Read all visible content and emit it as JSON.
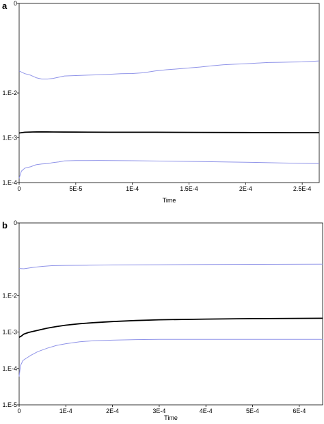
{
  "chart_data": [
    {
      "type": "line",
      "panel_label": "a",
      "xlabel": "Time",
      "ylabel": "",
      "xlim": [
        0,
        0.000265
      ],
      "ylim": [
        0.0001,
        1
      ],
      "y_scale": "log",
      "grid": false,
      "x_ticks": [
        {
          "value": 0,
          "label": "0"
        },
        {
          "value": 5e-05,
          "label": "5E-5"
        },
        {
          "value": 0.0001,
          "label": "1E-4"
        },
        {
          "value": 0.00015,
          "label": "1.5E-4"
        },
        {
          "value": 0.0002,
          "label": "2E-4"
        },
        {
          "value": 0.00025,
          "label": "2.5E-4"
        }
      ],
      "y_ticks": [
        {
          "value": 0.0001,
          "label": "1.E-4"
        },
        {
          "value": 0.001,
          "label": "1.E-3"
        },
        {
          "value": 0.01,
          "label": "1.E-2"
        },
        {
          "value": 1,
          "label": "0"
        }
      ],
      "series": [
        {
          "color": "#8f93e8",
          "points": [
            [
              0,
              0.031
            ],
            [
              5e-06,
              0.027
            ],
            [
              1e-05,
              0.025
            ],
            [
              1.5e-05,
              0.022
            ],
            [
              2e-05,
              0.0205
            ],
            [
              2.5e-05,
              0.0205
            ],
            [
              3e-05,
              0.0212
            ],
            [
              3.5e-05,
              0.0225
            ],
            [
              4e-05,
              0.024
            ],
            [
              5e-05,
              0.0245
            ],
            [
              6e-05,
              0.025
            ],
            [
              7e-05,
              0.0255
            ],
            [
              8e-05,
              0.0262
            ],
            [
              9e-05,
              0.027
            ],
            [
              0.0001,
              0.0272
            ],
            [
              0.00011,
              0.0283
            ],
            [
              0.00012,
              0.031
            ],
            [
              0.00013,
              0.033
            ],
            [
              0.00014,
              0.0345
            ],
            [
              0.00015,
              0.0362
            ],
            [
              0.00016,
              0.038
            ],
            [
              0.00017,
              0.0405
            ],
            [
              0.00018,
              0.0425
            ],
            [
              0.00019,
              0.044
            ],
            [
              0.0002,
              0.045
            ],
            [
              0.00021,
              0.0465
            ],
            [
              0.00022,
              0.048
            ],
            [
              0.00023,
              0.0485
            ],
            [
              0.00024,
              0.049
            ],
            [
              0.00025,
              0.0495
            ],
            [
              0.000265,
              0.052
            ]
          ]
        },
        {
          "color": "#000000",
          "points": [
            [
              0,
              0.00128
            ],
            [
              5e-06,
              0.00133
            ],
            [
              1.2e-05,
              0.00135
            ],
            [
              2e-05,
              0.00136
            ],
            [
              3e-05,
              0.00135
            ],
            [
              5e-05,
              0.00134
            ],
            [
              8e-05,
              0.00133
            ],
            [
              0.00012,
              0.00133
            ],
            [
              0.00016,
              0.00132
            ],
            [
              0.0002,
              0.00131
            ],
            [
              0.00024,
              0.0013
            ],
            [
              0.000265,
              0.0013
            ]
          ]
        },
        {
          "color": "#8f93e8",
          "points": [
            [
              0,
              0.000125
            ],
            [
              2e-06,
              0.00018
            ],
            [
              5e-06,
              0.00021
            ],
            [
              1e-05,
              0.000225
            ],
            [
              1.5e-05,
              0.00025
            ],
            [
              2e-05,
              0.00026
            ],
            [
              2.5e-05,
              0.000265
            ],
            [
              3e-05,
              0.00028
            ],
            [
              3.5e-05,
              0.00029
            ],
            [
              4e-05,
              0.000305
            ],
            [
              5e-05,
              0.00031
            ],
            [
              7e-05,
              0.000312
            ],
            [
              0.0001,
              0.000308
            ],
            [
              0.00013,
              0.000302
            ],
            [
              0.00016,
              0.000295
            ],
            [
              0.0002,
              0.000285
            ],
            [
              0.00023,
              0.000275
            ],
            [
              0.000265,
              0.000265
            ]
          ]
        }
      ]
    },
    {
      "type": "line",
      "panel_label": "b",
      "xlabel": "Time",
      "ylabel": "",
      "xlim": [
        0,
        0.00065
      ],
      "ylim": [
        1e-05,
        1
      ],
      "y_scale": "log",
      "grid": false,
      "x_ticks": [
        {
          "value": 0,
          "label": "0"
        },
        {
          "value": 0.0001,
          "label": "1E-4"
        },
        {
          "value": 0.0002,
          "label": "2E-4"
        },
        {
          "value": 0.0003,
          "label": "3E-4"
        },
        {
          "value": 0.0004,
          "label": "4E-4"
        },
        {
          "value": 0.0005,
          "label": "5E-4"
        },
        {
          "value": 0.0006,
          "label": "6E-4"
        }
      ],
      "y_ticks": [
        {
          "value": 1e-05,
          "label": "1.E-5"
        },
        {
          "value": 0.0001,
          "label": "1.E-4"
        },
        {
          "value": 0.001,
          "label": "1.E-3"
        },
        {
          "value": 0.01,
          "label": "1.E-2"
        },
        {
          "value": 1,
          "label": "0"
        }
      ],
      "series": [
        {
          "color": "#8f93e8",
          "points": [
            [
              0,
              0.056
            ],
            [
              1e-05,
              0.055
            ],
            [
              3e-05,
              0.06
            ],
            [
              5e-05,
              0.064
            ],
            [
              7e-05,
              0.067
            ],
            [
              0.0001,
              0.068
            ],
            [
              0.00015,
              0.069
            ],
            [
              0.0002,
              0.07
            ],
            [
              0.0003,
              0.071
            ],
            [
              0.0004,
              0.072
            ],
            [
              0.0005,
              0.073
            ],
            [
              0.00065,
              0.074
            ]
          ]
        },
        {
          "color": "#000000",
          "points": [
            [
              0,
              0.00072
            ],
            [
              5e-06,
              0.00078
            ],
            [
              1e-05,
              0.00088
            ],
            [
              2e-05,
              0.00098
            ],
            [
              4e-05,
              0.00112
            ],
            [
              6e-05,
              0.00128
            ],
            [
              8e-05,
              0.00142
            ],
            [
              0.0001,
              0.00155
            ],
            [
              0.00013,
              0.0017
            ],
            [
              0.00016,
              0.00182
            ],
            [
              0.0002,
              0.00195
            ],
            [
              0.00025,
              0.00208
            ],
            [
              0.0003,
              0.00218
            ],
            [
              0.0004,
              0.00228
            ],
            [
              0.0005,
              0.00235
            ],
            [
              0.00065,
              0.0024
            ]
          ]
        },
        {
          "color": "#8f93e8",
          "points": [
            [
              0,
              6e-05
            ],
            [
              3e-06,
              0.00012
            ],
            [
              8e-06,
              0.000165
            ],
            [
              1.5e-05,
              0.00019
            ],
            [
              2.5e-05,
              0.00023
            ],
            [
              4e-05,
              0.00029
            ],
            [
              6e-05,
              0.00036
            ],
            [
              8e-05,
              0.00043
            ],
            [
              0.0001,
              0.00048
            ],
            [
              0.00013,
              0.00054
            ],
            [
              0.00016,
              0.00058
            ],
            [
              0.0002,
              0.0006
            ],
            [
              0.00025,
              0.00062
            ],
            [
              0.0003,
              0.00063
            ],
            [
              0.0004,
              0.00063
            ],
            [
              0.00065,
              0.00063
            ]
          ]
        }
      ]
    }
  ]
}
